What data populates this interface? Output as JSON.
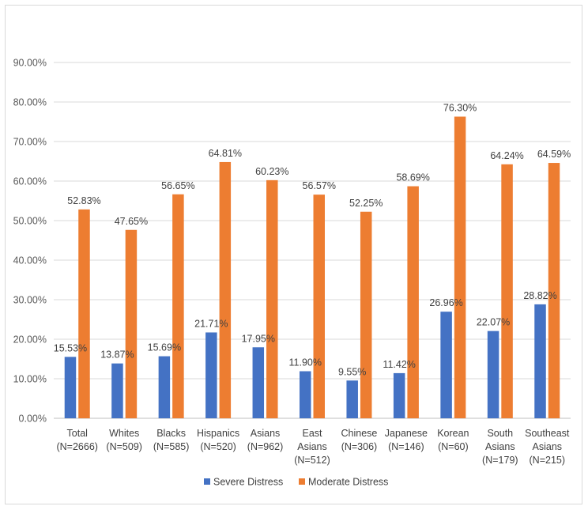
{
  "chart_data": {
    "type": "bar",
    "title": "",
    "xlabel": "",
    "ylabel": "",
    "ylim": [
      0,
      0.9
    ],
    "y_ticks": [
      "0.00%",
      "10.00%",
      "20.00%",
      "30.00%",
      "40.00%",
      "50.00%",
      "60.00%",
      "70.00%",
      "80.00%",
      "90.00%"
    ],
    "grid": true,
    "legend_position": "bottom",
    "categories": [
      [
        "Total",
        "(N=2666)"
      ],
      [
        "Whites",
        "(N=509)"
      ],
      [
        "Blacks",
        "(N=585)"
      ],
      [
        "Hispanics",
        "(N=520)"
      ],
      [
        "Asians",
        "(N=962)"
      ],
      [
        "East",
        "Asians",
        "(N=512)"
      ],
      [
        "Chinese",
        "(N=306)"
      ],
      [
        "Japanese",
        "(N=146)"
      ],
      [
        "Korean",
        "(N=60)"
      ],
      [
        "South",
        "Asians",
        "(N=179)"
      ],
      [
        "Southeast",
        "Asians",
        "(N=215)"
      ]
    ],
    "series": [
      {
        "name": "Severe Distress",
        "color": "#4472C4",
        "values": [
          0.1553,
          0.1387,
          0.1569,
          0.2171,
          0.1795,
          0.119,
          0.0955,
          0.1142,
          0.2696,
          0.2207,
          0.2882
        ],
        "labels": [
          "15.53%",
          "13.87%",
          "15.69%",
          "21.71%",
          "17.95%",
          "11.90%",
          "9.55%",
          "11.42%",
          "26.96%",
          "22.07%",
          "28.82%"
        ]
      },
      {
        "name": "Moderate Distress",
        "color": "#ED7D31",
        "values": [
          0.5283,
          0.4765,
          0.5665,
          0.6481,
          0.6023,
          0.5657,
          0.5225,
          0.5869,
          0.763,
          0.6424,
          0.6459
        ],
        "labels": [
          "52.83%",
          "47.65%",
          "56.65%",
          "64.81%",
          "60.23%",
          "56.57%",
          "52.25%",
          "58.69%",
          "76.30%",
          "64.24%",
          "64.59%"
        ]
      }
    ]
  }
}
